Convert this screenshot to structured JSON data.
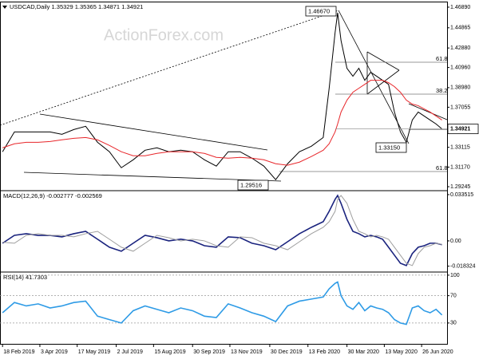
{
  "chart_data": [
    {
      "type": "line",
      "title": "USDCAD,Daily",
      "ohlc": [
        1.35329,
        1.35365,
        1.34871,
        1.34921
      ],
      "watermark": "ActionForex.com",
      "annotations": [
        "1.46670",
        "1.29516",
        "1.33150",
        "61.8",
        "38.2",
        "61.8"
      ],
      "x": [
        "2019-02-18",
        "2019-03-04",
        "2019-03-18",
        "2019-04-01",
        "2019-04-15",
        "2019-04-29",
        "2019-05-13",
        "2019-05-27",
        "2019-06-10",
        "2019-06-24",
        "2019-07-08",
        "2019-07-22",
        "2019-08-05",
        "2019-08-19",
        "2019-09-02",
        "2019-09-16",
        "2019-09-30",
        "2019-10-14",
        "2019-10-28",
        "2019-11-11",
        "2019-11-25",
        "2019-12-09",
        "2019-12-23",
        "2020-01-06",
        "2020-01-20",
        "2020-02-03",
        "2020-02-17",
        "2020-03-02",
        "2020-03-09",
        "2020-03-16",
        "2020-03-19",
        "2020-03-23",
        "2020-03-30",
        "2020-04-06",
        "2020-04-13",
        "2020-04-20",
        "2020-04-27",
        "2020-05-04",
        "2020-05-11",
        "2020-05-18",
        "2020-05-25",
        "2020-06-01",
        "2020-06-08",
        "2020-06-15",
        "2020-06-22",
        "2020-06-29",
        "2020-07-06",
        "2020-07-13",
        "2020-07-20"
      ],
      "xlim": [
        "2019-02-15",
        "2020-07-26"
      ],
      "ylim": [
        1.28933,
        1.47359
      ],
      "yticks": [
        {
          "value": 1.4689,
          "label": "1.46890"
        },
        1.44865,
        {
          "value": 1.4288,
          "label": "1.42880"
        },
        {
          "value": 1.4096,
          "label": "1.40960"
        },
        {
          "value": 1.3898,
          "label": "1.38980"
        },
        1.37055,
        1.33115,
        {
          "value": 1.3117,
          "label": "1.31170"
        },
        1.29245
      ],
      "grid": false,
      "series": [
        {
          "color": "#000000",
          "values": [
            1.3268,
            1.3463,
            1.3463,
            1.3463,
            1.3463,
            1.3439,
            1.3486,
            1.3518,
            1.3361,
            1.3268,
            1.3111,
            1.3189,
            1.3283,
            1.3307,
            1.3268,
            1.3283,
            1.3268,
            1.3189,
            1.3127,
            1.3268,
            1.3268,
            1.3205,
            1.3127,
            1.2994,
            1.315,
            1.3268,
            1.3322,
            1.3408,
            1.3892,
            1.4439,
            1.4634,
            1.4361,
            1.4088,
            1.401,
            1.4088,
            1.397,
            1.4049,
            1.401,
            1.397,
            1.3931,
            1.3658,
            1.3463,
            1.3361,
            1.358,
            1.3658,
            1.3619,
            1.358,
            1.3541,
            1.34921
          ]
        },
        {
          "color": "#e8262a",
          "values": [
            1.3307,
            1.3346,
            1.3361,
            1.3361,
            1.3369,
            1.3385,
            1.34,
            1.3408,
            1.3385,
            1.333,
            1.3268,
            1.3229,
            1.3229,
            1.3252,
            1.3268,
            1.3268,
            1.3268,
            1.3252,
            1.3213,
            1.3205,
            1.3213,
            1.3205,
            1.3189,
            1.315,
            1.3135,
            1.3166,
            1.3221,
            1.3283,
            1.3346,
            1.3463,
            1.3541,
            1.3658,
            1.3775,
            1.3853,
            1.3892,
            1.3931,
            1.397,
            1.397,
            1.397,
            1.3947,
            1.3908,
            1.3853,
            1.3775,
            1.3736,
            1.3721,
            1.3689,
            1.3658,
            1.3619,
            1.358
          ]
        }
      ]
    },
    {
      "type": "line",
      "title": "MACD(12,26,9)",
      "x": [
        "2019-02-18",
        "2019-03-04",
        "2019-03-18",
        "2019-04-01",
        "2019-04-15",
        "2019-04-29",
        "2019-05-13",
        "2019-05-27",
        "2019-06-10",
        "2019-06-24",
        "2019-07-08",
        "2019-07-22",
        "2019-08-05",
        "2019-08-19",
        "2019-09-02",
        "2019-09-16",
        "2019-09-30",
        "2019-10-14",
        "2019-10-28",
        "2019-11-11",
        "2019-11-25",
        "2019-12-09",
        "2019-12-23",
        "2020-01-06",
        "2020-01-20",
        "2020-02-03",
        "2020-02-17",
        "2020-03-02",
        "2020-03-09",
        "2020-03-16",
        "2020-03-19",
        "2020-03-23",
        "2020-03-30",
        "2020-04-06",
        "2020-04-13",
        "2020-04-20",
        "2020-04-27",
        "2020-05-04",
        "2020-05-11",
        "2020-05-18",
        "2020-05-25",
        "2020-06-01",
        "2020-06-08",
        "2020-06-15",
        "2020-06-22",
        "2020-06-29",
        "2020-07-06",
        "2020-07-13",
        "2020-07-20"
      ],
      "xlim": [
        "2019-02-15",
        "2020-07-26"
      ],
      "ylim": [
        -0.022,
        0.0358
      ],
      "yticks": [
        0.033515,
        {
          "value": 0,
          "label": "0.00"
        },
        -0.018324
      ],
      "grid": false,
      "series": [
        {
          "color": "#1a237e",
          "values": [
            -0.0017,
            0.004,
            0.0052,
            0.004,
            0.004,
            0.0029,
            0.0052,
            0.0069,
            0.0012,
            -0.0046,
            -0.0075,
            -0.0017,
            0.004,
            0.0023,
            0,
            0.0012,
            0,
            -0.0035,
            -0.0046,
            0.0029,
            0.0023,
            -0.0017,
            -0.0035,
            -0.0064,
            -0.0006,
            0.0052,
            0.0098,
            0.0139,
            0.0214,
            0.0301,
            0.0329,
            0.0272,
            0.0156,
            0.0069,
            0.0052,
            0.0029,
            0.004,
            0.0029,
            0.0012,
            -0.0046,
            -0.0104,
            -0.0162,
            -0.0179,
            -0.0092,
            -0.0046,
            -0.0035,
            -0.0017,
            -0.0017,
            -0.002777
          ]
        },
        {
          "color": "#9e9e9e",
          "values": [
            -0.001,
            -0.0017,
            0.004,
            0.0052,
            0.004,
            0.004,
            0.0029,
            0.0052,
            0.0069,
            0.0012,
            -0.0046,
            -0.0075,
            -0.0017,
            0.004,
            0.0023,
            0,
            0.0012,
            0,
            -0.0035,
            -0.0046,
            0.0029,
            0.0023,
            -0.0017,
            -0.0035,
            -0.0064,
            -0.0006,
            0.0052,
            0.0098,
            0.0139,
            0.0214,
            0.0301,
            0.0329,
            0.0272,
            0.0156,
            0.0069,
            0.0052,
            0.0029,
            0.004,
            0.0029,
            0.0012,
            -0.0046,
            -0.0104,
            -0.0162,
            -0.0179,
            -0.0092,
            -0.0046,
            -0.0035,
            -0.0017,
            -0.002569
          ]
        }
      ]
    },
    {
      "type": "line",
      "title": "RSI(14)",
      "x": [
        "2019-02-18",
        "2019-03-04",
        "2019-03-18",
        "2019-04-01",
        "2019-04-15",
        "2019-04-29",
        "2019-05-13",
        "2019-05-27",
        "2019-06-10",
        "2019-06-24",
        "2019-07-08",
        "2019-07-22",
        "2019-08-05",
        "2019-08-19",
        "2019-09-02",
        "2019-09-16",
        "2019-09-30",
        "2019-10-14",
        "2019-10-28",
        "2019-11-11",
        "2019-11-25",
        "2019-12-09",
        "2019-12-23",
        "2020-01-06",
        "2020-01-20",
        "2020-02-03",
        "2020-02-17",
        "2020-03-02",
        "2020-03-09",
        "2020-03-16",
        "2020-03-19",
        "2020-03-23",
        "2020-03-30",
        "2020-04-06",
        "2020-04-13",
        "2020-04-20",
        "2020-04-27",
        "2020-05-04",
        "2020-05-11",
        "2020-05-18",
        "2020-05-25",
        "2020-06-01",
        "2020-06-08",
        "2020-06-15",
        "2020-06-22",
        "2020-06-29",
        "2020-07-06",
        "2020-07-13",
        "2020-07-20"
      ],
      "xlim": [
        "2019-02-15",
        "2020-07-26"
      ],
      "xticks": [
        {
          "value": "2019-02-18",
          "label": "18 Feb 2019"
        },
        {
          "value": "2019-04-03",
          "label": "3 Apr 2019"
        },
        {
          "value": "2019-05-17",
          "label": "17 May 2019"
        },
        {
          "value": "2019-07-02",
          "label": "2 Jul 2019"
        },
        {
          "value": "2019-08-15",
          "label": "15 Aug 2019"
        },
        {
          "value": "2019-09-30",
          "label": "30 Sep 2019"
        },
        {
          "value": "2019-11-13",
          "label": "13 Nov 2019"
        },
        {
          "value": "2019-12-30",
          "label": "30 Dec 2019"
        },
        {
          "value": "2020-02-13",
          "label": "13 Feb 2020"
        },
        {
          "value": "2020-03-30",
          "label": "30 Mar 2020"
        },
        {
          "value": "2020-05-13",
          "label": "13 May 2020"
        },
        {
          "value": "2020-06-26",
          "label": "26 Jun 2020"
        }
      ],
      "ylim": [
        -0.5,
        103.4
      ],
      "yticks": [
        100,
        70,
        30
      ],
      "grid": true,
      "series": [
        {
          "color": "#2e9be6",
          "values": [
            45,
            60,
            55,
            58,
            52,
            55,
            60,
            62,
            40,
            35,
            30,
            48,
            55,
            50,
            45,
            52,
            48,
            40,
            38,
            58,
            52,
            45,
            40,
            32,
            55,
            62,
            65,
            68,
            80,
            88,
            90,
            70,
            55,
            50,
            60,
            48,
            55,
            52,
            50,
            45,
            35,
            30,
            28,
            52,
            55,
            48,
            45,
            50,
            41.7303
          ]
        }
      ]
    }
  ]
}
